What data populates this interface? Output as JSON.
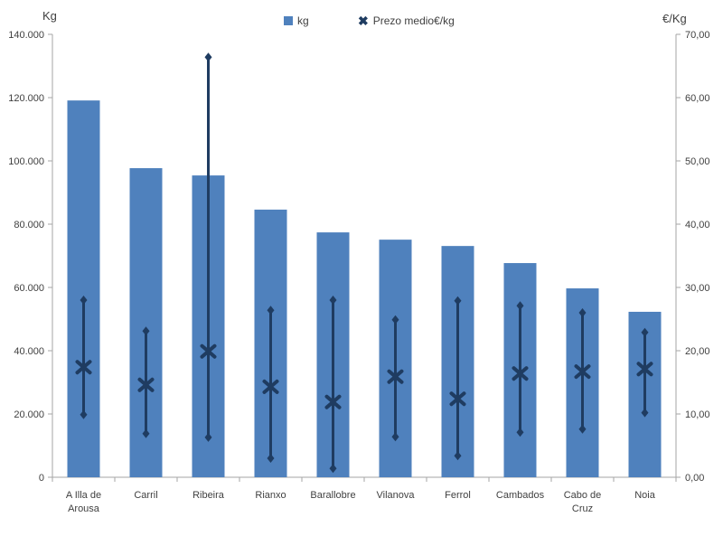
{
  "colors": {
    "bar": "#4f81bd",
    "marker": "#1f3c61",
    "axis_line": "#a6a6a6",
    "text": "#3f3f3f",
    "background": "#ffffff"
  },
  "legend": {
    "items": [
      {
        "label": "kg",
        "marker": "square"
      },
      {
        "label": "Prezo medio€/kg",
        "marker": "x",
        "glyph": "✖"
      }
    ]
  },
  "chart_data": {
    "type": "bar",
    "subtype": "combo: bars (kg, left axis) + price mean X markers with high-low range lines and diamond ends (€/kg, right axis)",
    "title": "",
    "grid": false,
    "legend_position": "top-center",
    "categories": [
      "A Illa de Arousa",
      "Carril",
      "Ribeira",
      "Rianxo",
      "Barallobre",
      "Vilanova",
      "Ferrol",
      "Cambados",
      "Cabo de Cruz",
      "Noia"
    ],
    "category_label_lines": [
      [
        "A Illa de",
        "Arousa"
      ],
      [
        "Carril"
      ],
      [
        "Ribeira"
      ],
      [
        "Rianxo"
      ],
      [
        "Barallobre"
      ],
      [
        "Vilanova"
      ],
      [
        "Ferrol"
      ],
      [
        "Cambados"
      ],
      [
        "Cabo de",
        "Cruz"
      ],
      [
        "Noia"
      ]
    ],
    "series": [
      {
        "name": "kg",
        "type": "bar",
        "axis": "left",
        "values": [
          119100,
          97700,
          95400,
          84600,
          77400,
          75100,
          73100,
          67700,
          59700,
          52300
        ]
      },
      {
        "name": "Prezo medio€/kg",
        "type": "scatter",
        "marker": "x",
        "axis": "right",
        "values": [
          17.4,
          14.6,
          19.9,
          14.3,
          11.9,
          15.9,
          12.4,
          16.4,
          16.7,
          17.1
        ],
        "range_high": [
          28.0,
          23.1,
          66.4,
          26.4,
          28.0,
          24.9,
          27.9,
          27.1,
          26.0,
          22.9
        ],
        "range_low": [
          9.9,
          6.9,
          6.3,
          3.0,
          1.4,
          6.4,
          3.4,
          7.1,
          7.6,
          10.2
        ]
      }
    ],
    "left_axis": {
      "title": "Kg",
      "min": 0,
      "max": 140000,
      "tick_step": 20000,
      "tick_labels": [
        "0",
        "20.000",
        "40.000",
        "60.000",
        "80.000",
        "100.000",
        "120.000",
        "140.000"
      ]
    },
    "right_axis": {
      "title": "€/Kg",
      "min": 0,
      "max": 70,
      "tick_step": 10,
      "tick_labels": [
        "0,00",
        "10,00",
        "20,00",
        "30,00",
        "40,00",
        "50,00",
        "60,00",
        "70,00"
      ]
    }
  }
}
